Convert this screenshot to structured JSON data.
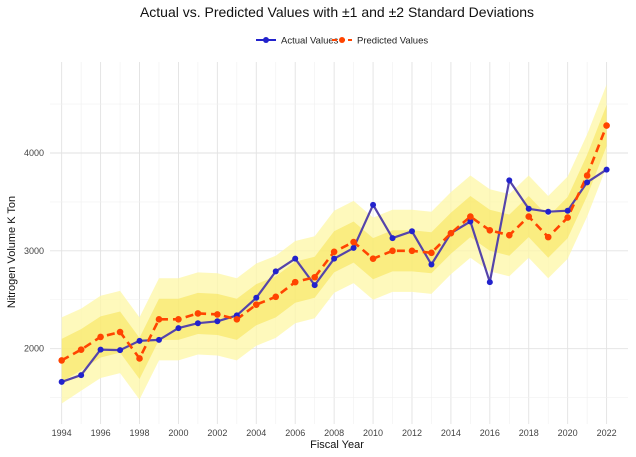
{
  "chart_data": {
    "type": "line",
    "title": "Actual vs. Predicted Values with ±1 and ±2 Standard Deviations",
    "xlabel": "Fiscal Year",
    "ylabel": "Nitrogen Volume K Ton",
    "x": [
      1994,
      1995,
      1996,
      1997,
      1998,
      1999,
      2000,
      2001,
      2002,
      2003,
      2004,
      2005,
      2006,
      2007,
      2008,
      2009,
      2010,
      2011,
      2012,
      2013,
      2014,
      2015,
      2016,
      2017,
      2018,
      2019,
      2020,
      2021,
      2022
    ],
    "x_ticks": [
      "1994",
      "1996",
      "1998",
      "2000",
      "2002",
      "2004",
      "2006",
      "2008",
      "2010",
      "2012",
      "2014",
      "2016",
      "2018",
      "2020",
      "2022"
    ],
    "y_ticks": [
      "2000",
      "3000",
      "4000"
    ],
    "xlim": [
      1993.4,
      2023.1
    ],
    "ylim": [
      1230,
      4930
    ],
    "series": [
      {
        "name": "Actual Values",
        "color": "#2222cc",
        "line_color": "#5544aa",
        "values": [
          1660,
          1730,
          1990,
          1985,
          2080,
          2090,
          2210,
          2260,
          2280,
          2340,
          2520,
          2790,
          2920,
          2650,
          2920,
          3030,
          3470,
          3130,
          3200,
          2860,
          3180,
          3300,
          2680,
          3720,
          3430,
          3400,
          3410,
          3700,
          3830
        ]
      },
      {
        "name": "Predicted Values",
        "color": "#ff4400",
        "line_color": "#ff4400",
        "values": [
          1880,
          1990,
          2120,
          2170,
          1900,
          2300,
          2300,
          2360,
          2350,
          2300,
          2450,
          2530,
          2680,
          2730,
          2990,
          3090,
          2920,
          3000,
          3000,
          2980,
          3180,
          3350,
          3210,
          3160,
          3350,
          3140,
          3340,
          3770,
          4280
        ]
      }
    ],
    "band_1sd": {
      "color": "#f7e45a",
      "lower": [
        1660,
        1780,
        1910,
        1960,
        1690,
        2090,
        2090,
        2150,
        2140,
        2090,
        2240,
        2320,
        2470,
        2520,
        2780,
        2880,
        2710,
        2790,
        2790,
        2770,
        2970,
        3140,
        3000,
        2950,
        3140,
        2930,
        3130,
        3560,
        4070
      ],
      "upper": [
        2100,
        2200,
        2330,
        2380,
        2110,
        2510,
        2510,
        2570,
        2560,
        2510,
        2660,
        2740,
        2890,
        2940,
        3200,
        3300,
        3130,
        3210,
        3210,
        3190,
        3390,
        3560,
        3420,
        3370,
        3560,
        3350,
        3550,
        3980,
        4490
      ]
    },
    "band_2sd": {
      "color": "#fdf7a6",
      "lower": [
        1440,
        1570,
        1700,
        1750,
        1480,
        1880,
        1880,
        1940,
        1930,
        1880,
        2030,
        2110,
        2260,
        2310,
        2570,
        2670,
        2500,
        2580,
        2580,
        2560,
        2760,
        2930,
        2790,
        2740,
        2930,
        2720,
        2920,
        3350,
        3860
      ],
      "upper": [
        2320,
        2410,
        2540,
        2590,
        2320,
        2720,
        2720,
        2780,
        2770,
        2720,
        2870,
        2950,
        3100,
        3150,
        3410,
        3510,
        3340,
        3420,
        3420,
        3400,
        3600,
        3770,
        3630,
        3580,
        3770,
        3560,
        3760,
        4190,
        4700
      ]
    },
    "grid": true,
    "legend_position": "top"
  }
}
